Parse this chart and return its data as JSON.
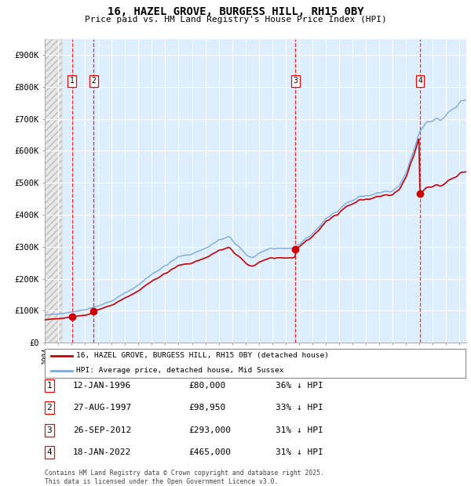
{
  "title": "16, HAZEL GROVE, BURGESS HILL, RH15 0BY",
  "subtitle": "Price paid vs. HM Land Registry's House Price Index (HPI)",
  "ylim": [
    0,
    950000
  ],
  "yticks": [
    0,
    100000,
    200000,
    300000,
    400000,
    500000,
    600000,
    700000,
    800000,
    900000
  ],
  "ytick_labels": [
    "£0",
    "£100K",
    "£200K",
    "£300K",
    "£400K",
    "£500K",
    "£600K",
    "£700K",
    "£800K",
    "£900K"
  ],
  "plot_bg_color": "#ddeeff",
  "grid_color": "#ffffff",
  "sale_dates_num": [
    1996.04,
    1997.65,
    2012.73,
    2022.04
  ],
  "sale_prices": [
    80000,
    98950,
    293000,
    465000
  ],
  "sale_labels": [
    "1",
    "2",
    "3",
    "4"
  ],
  "sale_line_color": "#cc0000",
  "hpi_line_color": "#7aaadd",
  "legend_sale_label": "16, HAZEL GROVE, BURGESS HILL, RH15 0BY (detached house)",
  "legend_hpi_label": "HPI: Average price, detached house, Mid Sussex",
  "table_entries": [
    {
      "num": "1",
      "date": "12-JAN-1996",
      "price": "£80,000",
      "pct": "36% ↓ HPI"
    },
    {
      "num": "2",
      "date": "27-AUG-1997",
      "price": "£98,950",
      "pct": "33% ↓ HPI"
    },
    {
      "num": "3",
      "date": "26-SEP-2012",
      "price": "£293,000",
      "pct": "31% ↓ HPI"
    },
    {
      "num": "4",
      "date": "18-JAN-2022",
      "price": "£465,000",
      "pct": "31% ↓ HPI"
    }
  ],
  "footnote": "Contains HM Land Registry data © Crown copyright and database right 2025.\nThis data is licensed under the Open Government Licence v3.0.",
  "xlim_start": 1994.0,
  "xlim_end": 2025.5,
  "hatch_end": 1995.3
}
